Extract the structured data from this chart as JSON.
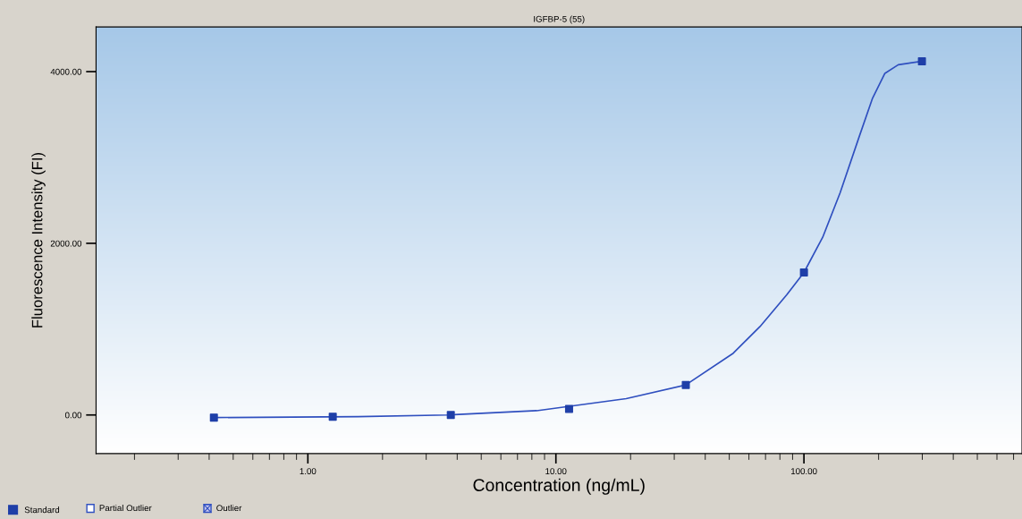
{
  "chart_data": {
    "type": "scatter",
    "title": "IGFBP-5 (55)",
    "xlabel": "Concentration (ng/mL)",
    "ylabel": "Fluorescence Intensity (FI)",
    "log": "x",
    "xlim": [
      0.14,
      757
    ],
    "xticks": [
      {
        "value": 1,
        "label": "1.00"
      },
      {
        "value": 10,
        "label": "10.00"
      },
      {
        "value": 100,
        "label": "100.00"
      }
    ],
    "ylim": [
      -450,
      4520
    ],
    "yticks": [
      {
        "value": 0,
        "label": "0.00"
      },
      {
        "value": 2000,
        "label": "2000.00"
      },
      {
        "value": 4000,
        "label": "4000.00"
      }
    ],
    "grid": false,
    "legend": "bottom left",
    "annotations": [
      "Partial Outlier",
      "Outlier"
    ],
    "series": [
      {
        "type": "line",
        "color": "#2f4fbf",
        "marker": "none",
        "line_style": "solid",
        "x": [
          0.418,
          1.59,
          3.65,
          8.36,
          19.2,
          33.4,
          51.9,
          66.5,
          85.2,
          100,
          119,
          140,
          166,
          189,
          212,
          240,
          299
        ],
        "values": [
          -30,
          -20,
          0,
          50,
          190,
          350,
          720,
          1030,
          1400,
          1660,
          2070,
          2590,
          3220,
          3690,
          3980,
          4080,
          4120
        ]
      },
      {
        "name": "Standard",
        "color": "#1f3fa8",
        "marker": "square",
        "x": [
          0.418,
          1.26,
          3.77,
          11.3,
          33.4,
          100,
          299
        ],
        "values": [
          -30,
          -20,
          0,
          70,
          350,
          1660,
          4120
        ]
      }
    ]
  }
}
